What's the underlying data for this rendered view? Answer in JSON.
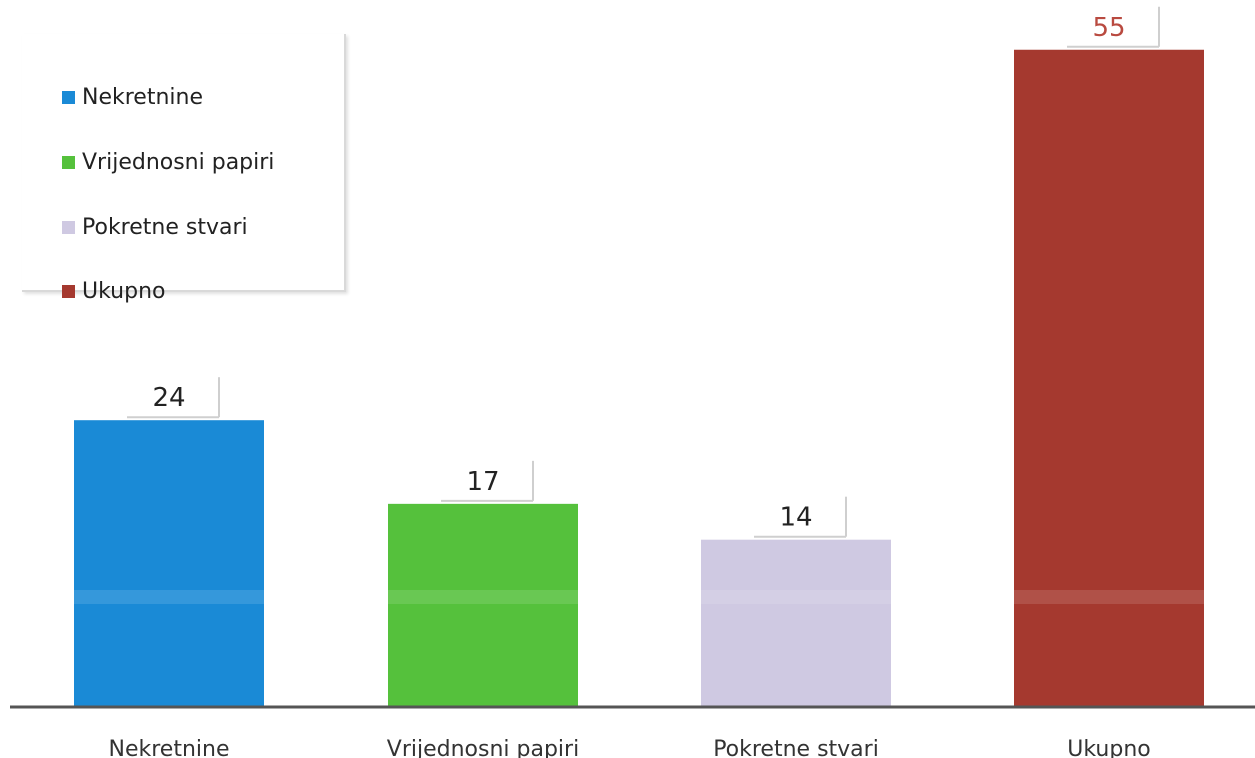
{
  "chart_data": {
    "type": "bar",
    "categories": [
      "Nekretnine",
      "Vrijednosni papiri",
      "Pokretne stvari",
      "Ukupno"
    ],
    "values": [
      24,
      17,
      14,
      55
    ],
    "value_labels": [
      "24",
      "17",
      "14",
      "55"
    ],
    "colors": [
      "#1a8ad6",
      "#55c13c",
      "#cfc9e2",
      "#a5392f"
    ],
    "label_colors": [
      "#222222",
      "#222222",
      "#222222",
      "#b94a40"
    ],
    "ylim": [
      0,
      60
    ],
    "grid": false,
    "legend": {
      "placement": "top-left",
      "entries": [
        "Nekretnine",
        "Vrijednosni papiri",
        "Pokretne stvari",
        "Ukupno"
      ]
    }
  }
}
